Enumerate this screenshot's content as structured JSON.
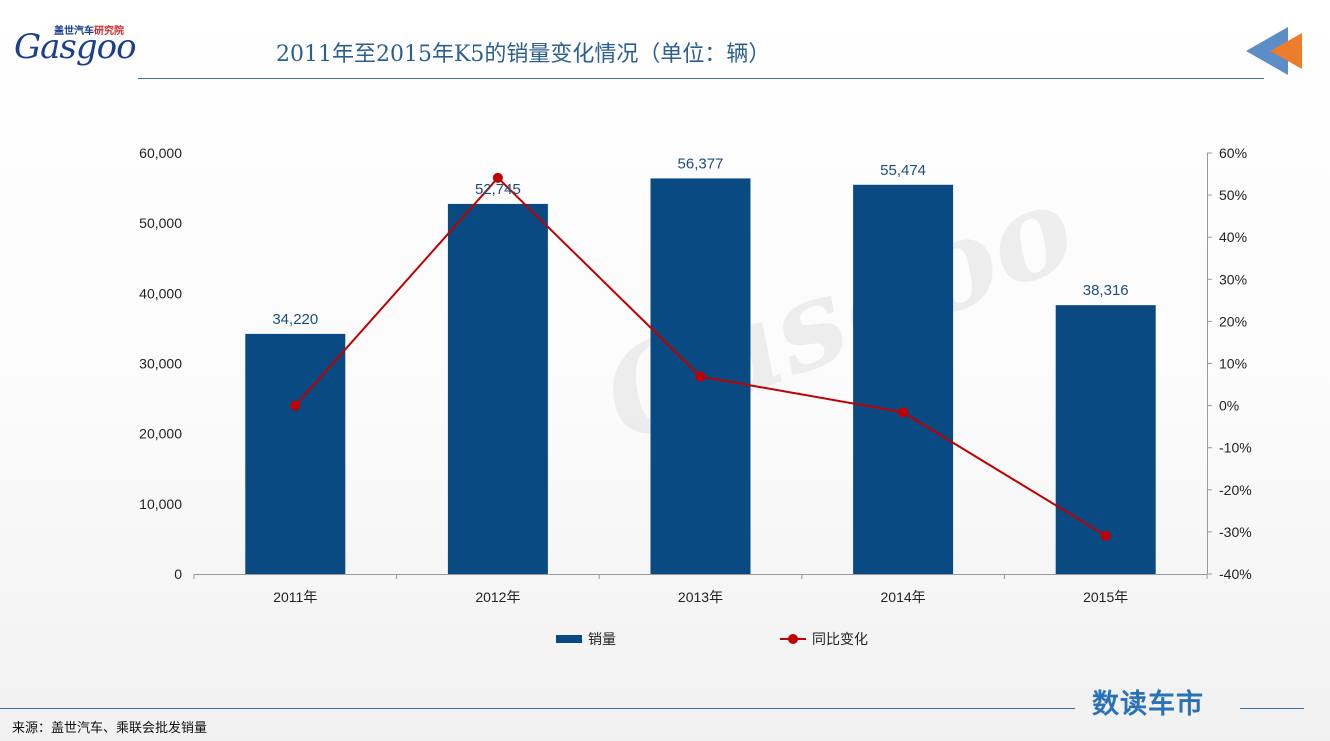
{
  "header": {
    "logo_cn_prefix": "盖世汽车",
    "logo_cn_suffix": "研究院",
    "logo_brand": "Gasgoo",
    "title": "2011年至2015年K5的销量变化情况（单位：辆）"
  },
  "colors": {
    "bar": "#0a4a82",
    "line": "#c00000",
    "title": "#2d5f8e",
    "arrow_blue": "#5b8dc6",
    "arrow_orange": "#ec7d2c"
  },
  "chart_data": {
    "type": "bar",
    "categories": [
      "2011年",
      "2012年",
      "2013年",
      "2014年",
      "2015年"
    ],
    "series": [
      {
        "name": "销量",
        "type": "bar",
        "axis": "left",
        "values": [
          34220,
          52745,
          56377,
          55474,
          38316
        ],
        "labels": [
          "34,220",
          "52,745",
          "56,377",
          "55,474",
          "38,316"
        ]
      },
      {
        "name": "同比变化",
        "type": "line",
        "axis": "right",
        "values": [
          0,
          54.1,
          6.9,
          -1.6,
          -30.9
        ]
      }
    ],
    "y_left": {
      "min": 0,
      "max": 60000,
      "step": 10000,
      "ticks": [
        "0",
        "10,000",
        "20,000",
        "30,000",
        "40,000",
        "50,000",
        "60,000"
      ]
    },
    "y_right": {
      "min": -40,
      "max": 60,
      "step": 10,
      "ticks": [
        "-40%",
        "-30%",
        "-20%",
        "-10%",
        "0%",
        "10%",
        "20%",
        "30%",
        "40%",
        "50%",
        "60%"
      ]
    },
    "legend_position": "bottom",
    "grid": false
  },
  "footer": {
    "source": "来源：盖世汽车、乘联会批发销量",
    "brand": "数读车市"
  }
}
